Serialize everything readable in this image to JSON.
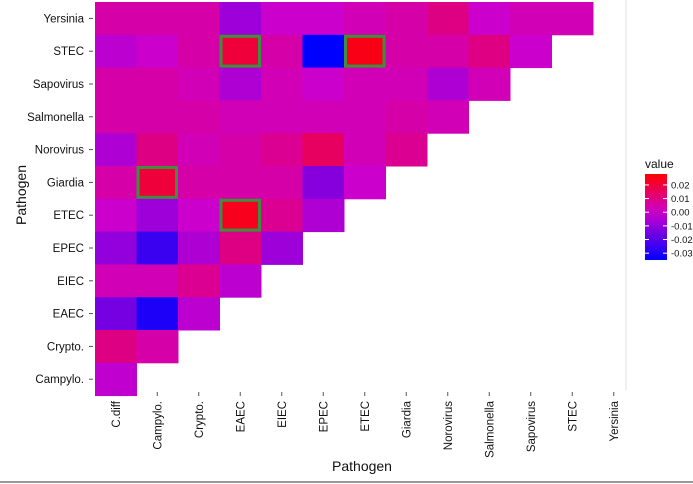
{
  "chart_data": {
    "type": "heatmap",
    "xlabel": "Pathogen",
    "ylabel": "Pathogen",
    "x_categories": [
      "C.diff",
      "Campylo.",
      "Crypto.",
      "EAEC",
      "EIEC",
      "EPEC",
      "ETEC",
      "Giardia",
      "Norovirus",
      "Salmonella",
      "Sapovirus",
      "STEC",
      "Yersinia"
    ],
    "y_categories": [
      "Campylo.",
      "Crypto.",
      "EAEC",
      "EIEC",
      "EPEC",
      "ETEC",
      "Giardia",
      "Norovirus",
      "Salmonella",
      "Sapovirus",
      "STEC",
      "Yersinia"
    ],
    "legend": {
      "title": "value",
      "ticks": [
        0.02,
        0.01,
        0.0,
        -0.01,
        -0.02,
        -0.03
      ],
      "tick_labels": [
        "0.02",
        "0.01",
        "0.00",
        "-0.01",
        "-0.02",
        "-0.03"
      ],
      "range": [
        -0.035,
        0.028
      ],
      "colors": {
        "low": "#0000ff",
        "mid": "#cc00cc",
        "high": "#ff0000"
      }
    },
    "highlight_color": "#3e8e41",
    "cells": [
      {
        "y": "Yersinia",
        "values": [
          0.005,
          0.005,
          0.005,
          -0.008,
          0.0,
          0.0,
          0.003,
          0.005,
          0.01,
          0.0,
          0.003,
          0.003
        ]
      },
      {
        "y": "STEC",
        "values": [
          -0.003,
          0.0,
          0.005,
          0.02,
          0.005,
          -0.035,
          0.025,
          0.005,
          0.005,
          0.01,
          0.0
        ]
      },
      {
        "y": "Sapovirus",
        "values": [
          0.005,
          0.005,
          0.003,
          -0.005,
          0.003,
          0.0,
          0.003,
          0.003,
          -0.005,
          0.003
        ]
      },
      {
        "y": "Salmonella",
        "values": [
          0.005,
          0.005,
          0.005,
          0.003,
          0.003,
          0.003,
          0.003,
          0.005,
          0.003
        ]
      },
      {
        "y": "Norovirus",
        "values": [
          -0.005,
          0.01,
          0.003,
          0.005,
          0.008,
          0.015,
          0.003,
          0.008
        ]
      },
      {
        "y": "Giardia",
        "values": [
          0.005,
          0.02,
          0.005,
          0.005,
          0.005,
          -0.012,
          0.0
        ]
      },
      {
        "y": "ETEC",
        "values": [
          0.0,
          -0.008,
          0.0,
          0.024,
          0.008,
          -0.005
        ]
      },
      {
        "y": "EPEC",
        "values": [
          -0.01,
          -0.025,
          -0.005,
          0.01,
          -0.008
        ]
      },
      {
        "y": "EIEC",
        "values": [
          0.003,
          0.003,
          0.008,
          -0.003
        ]
      },
      {
        "y": "EAEC",
        "values": [
          -0.015,
          -0.03,
          -0.003
        ]
      },
      {
        "y": "Crypto.",
        "values": [
          0.01,
          0.005
        ]
      },
      {
        "y": "Campylo.",
        "values": [
          -0.002
        ]
      }
    ],
    "highlighted_cells": [
      {
        "x": "EAEC",
        "y": "STEC"
      },
      {
        "x": "ETEC",
        "y": "STEC"
      },
      {
        "x": "Campylo.",
        "y": "Giardia"
      },
      {
        "x": "EAEC",
        "y": "ETEC"
      }
    ]
  }
}
